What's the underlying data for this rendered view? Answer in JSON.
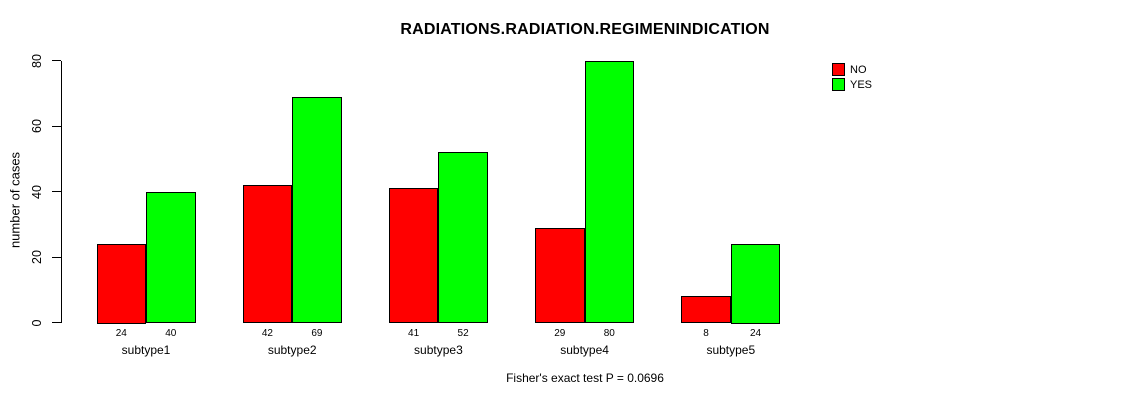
{
  "chart_data": {
    "type": "bar",
    "title": "RADIATIONS.RADIATION.REGIMENINDICATION",
    "ylabel": "number of cases",
    "xlabel": "",
    "subtitle": "Fisher's exact test P = 0.0696",
    "categories": [
      "subtype1",
      "subtype2",
      "subtype3",
      "subtype4",
      "subtype5"
    ],
    "series": [
      {
        "name": "NO",
        "color": "#FF0000",
        "values": [
          24,
          42,
          41,
          29,
          8
        ]
      },
      {
        "name": "YES",
        "color": "#00FF00",
        "values": [
          40,
          69,
          52,
          80,
          24
        ]
      }
    ],
    "show_bar_values": true,
    "ylim": [
      0,
      80
    ],
    "yticks": [
      0,
      20,
      40,
      60,
      80
    ],
    "grid": false,
    "legend_position": "top-right",
    "background_color": "#FFFFFF",
    "text_color": "#000000",
    "axis_color": "#000000"
  }
}
